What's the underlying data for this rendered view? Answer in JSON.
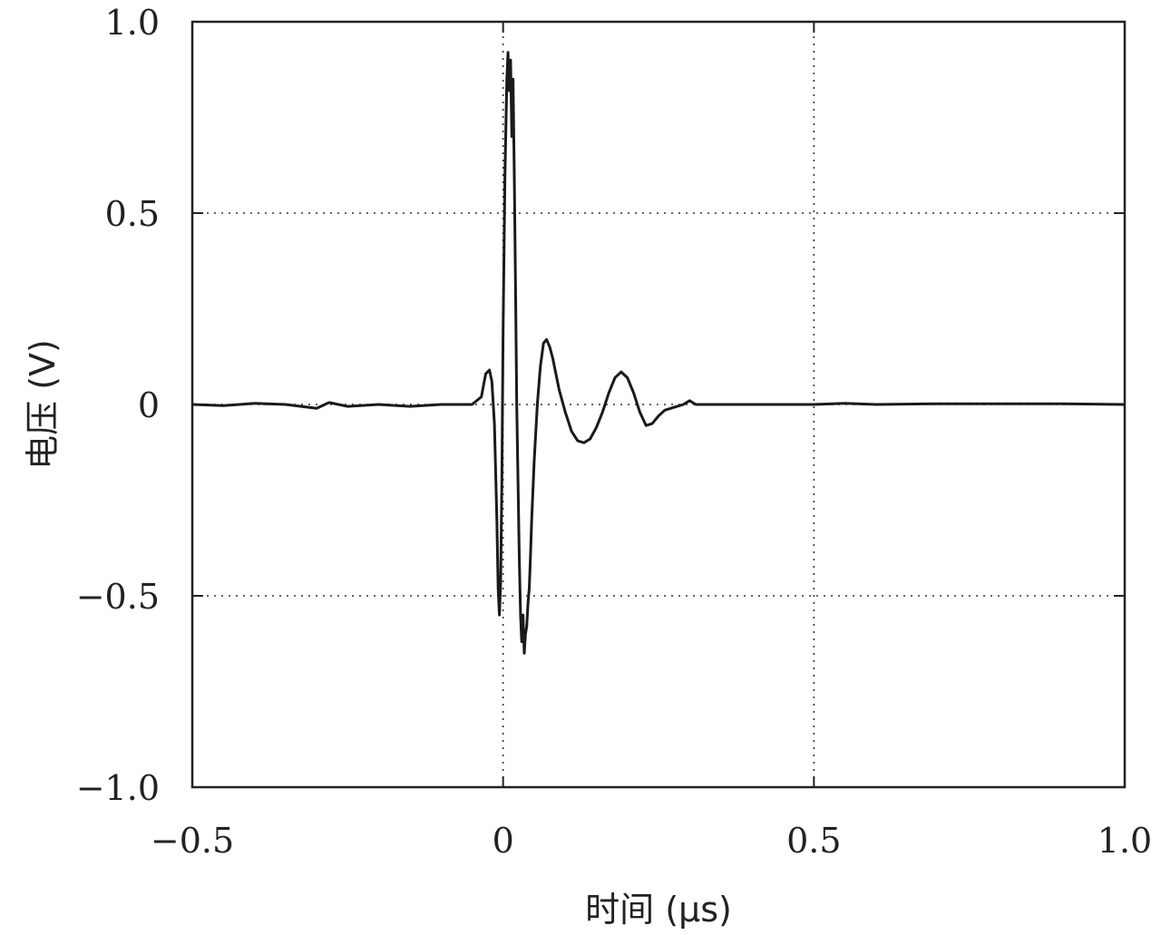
{
  "chart_data": {
    "type": "line",
    "title": "",
    "xlabel": "时间 (μs)",
    "ylabel": "电压 (V)",
    "xlim": [
      -0.5,
      1.0
    ],
    "ylim": [
      -1.0,
      1.0
    ],
    "x_ticks": [
      -0.5,
      0,
      0.5,
      1.0
    ],
    "x_tick_labels": [
      "−0.5",
      "0",
      "0.5",
      "1.0"
    ],
    "y_ticks": [
      -1.0,
      -0.5,
      0,
      0.5,
      1.0
    ],
    "y_tick_labels": [
      "−1.0",
      "−0.5",
      "0",
      "0.5",
      "1.0"
    ],
    "grid": true,
    "grid_style": "dotted",
    "line_color": "#1a1a1a",
    "series": [
      {
        "x": [
          -0.5,
          -0.45,
          -0.4,
          -0.35,
          -0.3,
          -0.28,
          -0.25,
          -0.2,
          -0.15,
          -0.1,
          -0.05,
          -0.035,
          -0.028,
          -0.022,
          -0.018,
          -0.014,
          -0.01,
          -0.008,
          -0.006,
          -0.004,
          -0.002,
          0.0,
          0.003,
          0.006,
          0.008,
          0.01,
          0.012,
          0.014,
          0.016,
          0.018,
          0.02,
          0.022,
          0.024,
          0.026,
          0.028,
          0.03,
          0.032,
          0.034,
          0.036,
          0.038,
          0.04,
          0.042,
          0.044,
          0.046,
          0.05,
          0.055,
          0.06,
          0.065,
          0.07,
          0.075,
          0.08,
          0.09,
          0.1,
          0.11,
          0.12,
          0.13,
          0.14,
          0.15,
          0.16,
          0.17,
          0.18,
          0.19,
          0.2,
          0.21,
          0.22,
          0.23,
          0.24,
          0.25,
          0.26,
          0.27,
          0.28,
          0.29,
          0.3,
          0.31,
          0.32,
          0.4,
          0.5,
          0.55,
          0.6,
          0.7,
          0.8,
          0.9,
          1.0
        ],
        "y": [
          0.0,
          -0.003,
          0.003,
          0.0,
          -0.01,
          0.005,
          -0.005,
          0.0,
          -0.005,
          0.0,
          0.0,
          0.02,
          0.08,
          0.09,
          0.06,
          -0.05,
          -0.3,
          -0.48,
          -0.55,
          -0.47,
          -0.2,
          0.2,
          0.6,
          0.85,
          0.92,
          0.82,
          0.9,
          0.7,
          0.85,
          0.6,
          0.3,
          0.0,
          -0.2,
          -0.4,
          -0.55,
          -0.62,
          -0.55,
          -0.65,
          -0.6,
          -0.58,
          -0.52,
          -0.48,
          -0.4,
          -0.3,
          -0.15,
          0.0,
          0.1,
          0.16,
          0.17,
          0.15,
          0.12,
          0.04,
          -0.02,
          -0.07,
          -0.095,
          -0.1,
          -0.09,
          -0.06,
          -0.02,
          0.03,
          0.07,
          0.085,
          0.07,
          0.03,
          -0.02,
          -0.055,
          -0.05,
          -0.03,
          -0.015,
          -0.01,
          -0.005,
          0.0,
          0.01,
          0.0,
          0.0,
          0.0,
          0.0,
          0.003,
          0.0,
          0.002,
          0.002,
          0.002,
          0.0
        ]
      }
    ]
  }
}
